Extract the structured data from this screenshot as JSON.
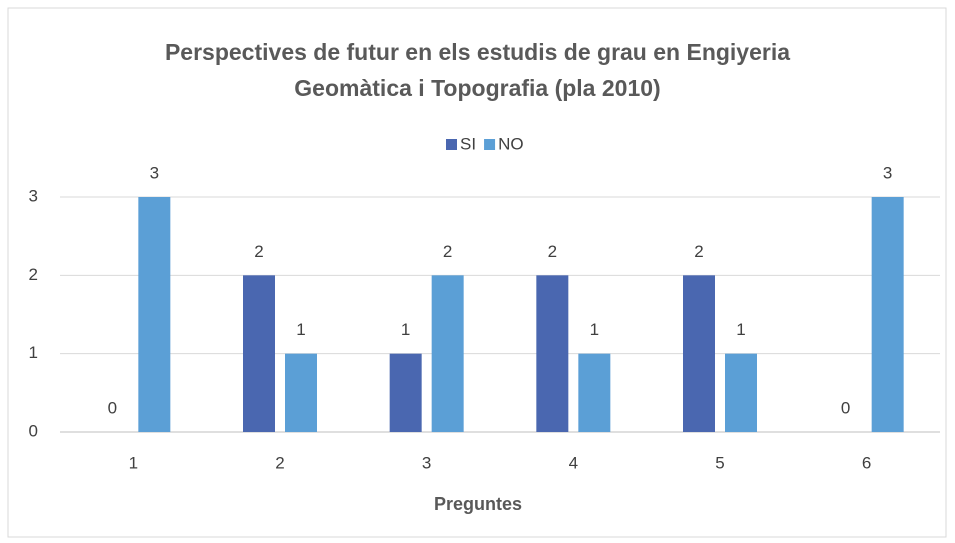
{
  "chart_data": {
    "type": "bar",
    "title": "Perspectives de futur en els estudis de grau en Engiyeria Geomàtica i Topografia (pla 2010)",
    "x_label": "Preguntes",
    "categories": [
      "1",
      "2",
      "3",
      "4",
      "5",
      "6"
    ],
    "series": [
      {
        "name": "SI",
        "color": "#4a67b0",
        "values": [
          0,
          2,
          1,
          2,
          2,
          0
        ]
      },
      {
        "name": "NO",
        "color": "#5b9fd6",
        "values": [
          3,
          1,
          2,
          1,
          1,
          3
        ]
      }
    ],
    "ylim": [
      0,
      3
    ],
    "yticks": [
      0,
      1,
      2,
      3
    ],
    "grid": true,
    "legend": "top"
  }
}
